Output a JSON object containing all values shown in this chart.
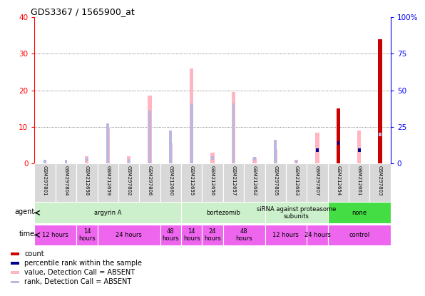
{
  "title": "GDS3367 / 1565900_at",
  "samples": [
    "GSM297801",
    "GSM297804",
    "GSM212658",
    "GSM212659",
    "GSM297802",
    "GSM297806",
    "GSM212660",
    "GSM212655",
    "GSM212656",
    "GSM212657",
    "GSM212662",
    "GSM297805",
    "GSM212663",
    "GSM297807",
    "GSM212654",
    "GSM212661",
    "GSM297803"
  ],
  "count_values": [
    0,
    0,
    0,
    0,
    0,
    0,
    0,
    0,
    0,
    0,
    0,
    0,
    0,
    0,
    15,
    0,
    34
  ],
  "value_absent": [
    0,
    0,
    2,
    9.5,
    2,
    18.5,
    5.5,
    26,
    3,
    19.5,
    1.5,
    4,
    1,
    8.5,
    9,
    9,
    0
  ],
  "rank_absent": [
    0,
    0,
    0,
    11,
    0,
    14.5,
    9,
    16.5,
    0,
    16.5,
    0,
    6.5,
    0,
    0,
    0,
    0,
    0
  ],
  "percentile_absent_vals": [
    1,
    1,
    2.5,
    0,
    1.5,
    0,
    0,
    0,
    3.5,
    0,
    3,
    0,
    1,
    0,
    0,
    0,
    20
  ],
  "rank_present_vals": [
    0,
    0,
    0,
    0,
    0,
    0,
    0,
    0,
    0,
    0,
    0,
    0,
    0,
    9,
    14,
    9,
    0
  ],
  "ylim_left": [
    0,
    40
  ],
  "ylim_right": [
    0,
    100
  ],
  "yticks_left": [
    0,
    10,
    20,
    30,
    40
  ],
  "yticks_right": [
    0,
    25,
    50,
    75,
    100
  ],
  "ytick_labels_right": [
    "0",
    "25",
    "50",
    "75",
    "100%"
  ],
  "color_count": "#cc0000",
  "color_percentile_present": "#00008B",
  "color_value_absent": "#FFB6C1",
  "color_rank_absent": "#b8b8e0",
  "agent_groups": [
    {
      "label": "argyrin A",
      "start": 0,
      "end": 7,
      "color": "#ccf0cc"
    },
    {
      "label": "bortezomib",
      "start": 7,
      "end": 11,
      "color": "#ccf0cc"
    },
    {
      "label": "siRNA against proteasome\nsubunits",
      "start": 11,
      "end": 14,
      "color": "#ccf0cc"
    },
    {
      "label": "none",
      "start": 14,
      "end": 17,
      "color": "#44dd44"
    }
  ],
  "time_groups": [
    {
      "label": "12 hours",
      "start": 0,
      "end": 2,
      "color": "#ee66ee"
    },
    {
      "label": "14\nhours",
      "start": 2,
      "end": 3,
      "color": "#ee66ee"
    },
    {
      "label": "24 hours",
      "start": 3,
      "end": 6,
      "color": "#ee66ee"
    },
    {
      "label": "48\nhours",
      "start": 6,
      "end": 7,
      "color": "#ee66ee"
    },
    {
      "label": "14\nhours",
      "start": 7,
      "end": 8,
      "color": "#ee66ee"
    },
    {
      "label": "24\nhours",
      "start": 8,
      "end": 9,
      "color": "#ee66ee"
    },
    {
      "label": "48\nhours",
      "start": 9,
      "end": 11,
      "color": "#ee66ee"
    },
    {
      "label": "12 hours",
      "start": 11,
      "end": 13,
      "color": "#ee66ee"
    },
    {
      "label": "24 hours",
      "start": 13,
      "end": 14,
      "color": "#ee66ee"
    },
    {
      "label": "control",
      "start": 14,
      "end": 17,
      "color": "#ee66ee"
    }
  ]
}
